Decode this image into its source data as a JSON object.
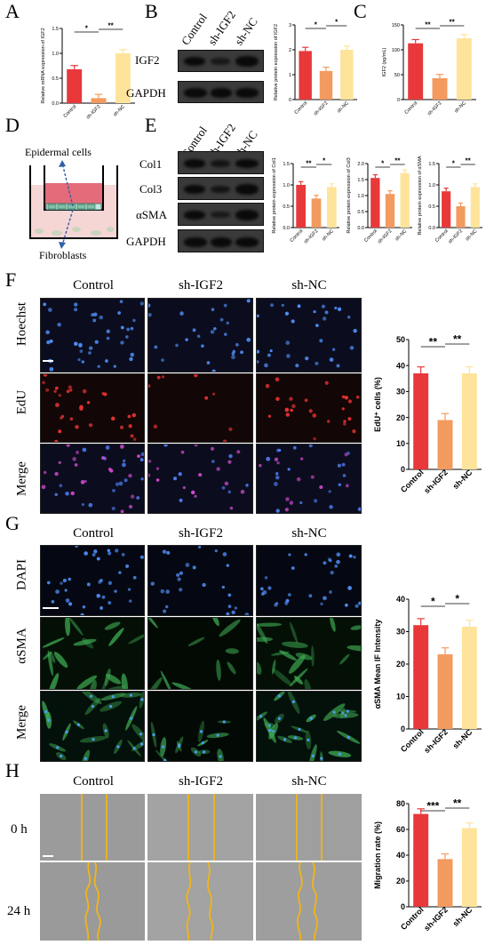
{
  "panels": {
    "A": "A",
    "B": "B",
    "C": "C",
    "D": "D",
    "E": "E",
    "F": "F",
    "G": "G",
    "H": "H"
  },
  "groups": [
    "Control",
    "sh-IGF2",
    "sh-NC"
  ],
  "colors": {
    "control": "#e8383a",
    "shigf2": "#f39a5e",
    "shnc": "#fde49a",
    "line": "#f2c230"
  },
  "panel_B": {
    "bands": [
      "IGF2",
      "GAPDH"
    ]
  },
  "panel_D": {
    "top_label": "Epidermal cells",
    "bottom_label": "Fibroblasts"
  },
  "panel_E": {
    "bands": [
      "Col1",
      "Col3",
      "αSMA",
      "GAPDH"
    ]
  },
  "panel_F": {
    "rows": [
      "Hoechst",
      "EdU",
      "Merge"
    ]
  },
  "panel_G": {
    "rows": [
      "DAPI",
      "αSMA",
      "Merge"
    ]
  },
  "panel_H": {
    "rows": [
      "0 h",
      "24 h"
    ]
  },
  "chart_data": [
    {
      "id": "A",
      "type": "bar",
      "categories": [
        "Control",
        "sh-IGF2",
        "sh-NC"
      ],
      "values": [
        0.68,
        0.1,
        1.0
      ],
      "ylabel": "Relative mRNA expression of IGF2",
      "ylim": [
        0,
        1.5
      ],
      "yticks": [
        "0.0",
        "0.5",
        "1.0",
        "1.5"
      ],
      "sig": [
        "*",
        "**"
      ]
    },
    {
      "id": "B",
      "type": "bar",
      "categories": [
        "Control",
        "sh-IGF2",
        "sh-NC"
      ],
      "values": [
        1.95,
        1.15,
        2.0
      ],
      "ylabel": "Relative protein expression of IGF2",
      "ylim": [
        0,
        3
      ],
      "yticks": [
        "0",
        "1",
        "2",
        "3"
      ],
      "sig": [
        "*",
        "*"
      ]
    },
    {
      "id": "C",
      "type": "bar",
      "categories": [
        "Control",
        "sh-IGF2",
        "sh-NC"
      ],
      "values": [
        113,
        43,
        123
      ],
      "ylabel": "IGF2 (pg/mL)",
      "ylim": [
        0,
        150
      ],
      "yticks": [
        "0",
        "50",
        "100",
        "150"
      ],
      "sig": [
        "**",
        "**"
      ]
    },
    {
      "id": "E1",
      "type": "bar",
      "categories": [
        "Control",
        "sh-IGF2",
        "sh-NC"
      ],
      "values": [
        1.0,
        0.68,
        0.95
      ],
      "ylabel": "Relative protein expression of Col1",
      "ylim": [
        0,
        1.5
      ],
      "yticks": [
        "0.0",
        "0.5",
        "1.0",
        "1.5"
      ],
      "sig": [
        "**",
        "*"
      ]
    },
    {
      "id": "E2",
      "type": "bar",
      "categories": [
        "Control",
        "sh-IGF2",
        "sh-NC"
      ],
      "values": [
        1.55,
        1.05,
        1.7
      ],
      "ylabel": "Relative protein expression of Col3",
      "ylim": [
        0,
        2
      ],
      "yticks": [
        "0.0",
        "0.5",
        "1.0",
        "1.5",
        "2.0"
      ],
      "sig": [
        "*",
        "**"
      ]
    },
    {
      "id": "E3",
      "type": "bar",
      "categories": [
        "Control",
        "sh-IGF2",
        "sh-NC"
      ],
      "values": [
        0.85,
        0.5,
        0.95
      ],
      "ylabel": "Relative protein expression of αSMA",
      "ylim": [
        0,
        1.5
      ],
      "yticks": [
        "0.0",
        "0.5",
        "1.0",
        "1.5"
      ],
      "sig": [
        "*",
        "**"
      ]
    },
    {
      "id": "F",
      "type": "bar",
      "categories": [
        "Control",
        "sh-IGF2",
        "sh-NC"
      ],
      "values": [
        37,
        19,
        37
      ],
      "ylabel": "EdU⁺ cells (%)",
      "ylim": [
        0,
        50
      ],
      "yticks": [
        "0",
        "10",
        "20",
        "30",
        "40",
        "50"
      ],
      "sig": [
        "**",
        "**"
      ]
    },
    {
      "id": "G",
      "type": "bar",
      "categories": [
        "Control",
        "sh-IGF2",
        "sh-NC"
      ],
      "values": [
        32,
        23,
        31.5
      ],
      "ylabel": "αSMA Mean IF Intensity",
      "ylim": [
        0,
        40
      ],
      "yticks": [
        "0",
        "10",
        "20",
        "30",
        "40"
      ],
      "sig": [
        "*",
        "*"
      ]
    },
    {
      "id": "H",
      "type": "bar",
      "categories": [
        "Control",
        "sh-IGF2",
        "sh-NC"
      ],
      "values": [
        72,
        37,
        61
      ],
      "ylabel": "Migration rate (%)",
      "ylim": [
        0,
        80
      ],
      "yticks": [
        "0",
        "20",
        "40",
        "60",
        "80"
      ],
      "sig": [
        "***",
        "**"
      ]
    }
  ]
}
